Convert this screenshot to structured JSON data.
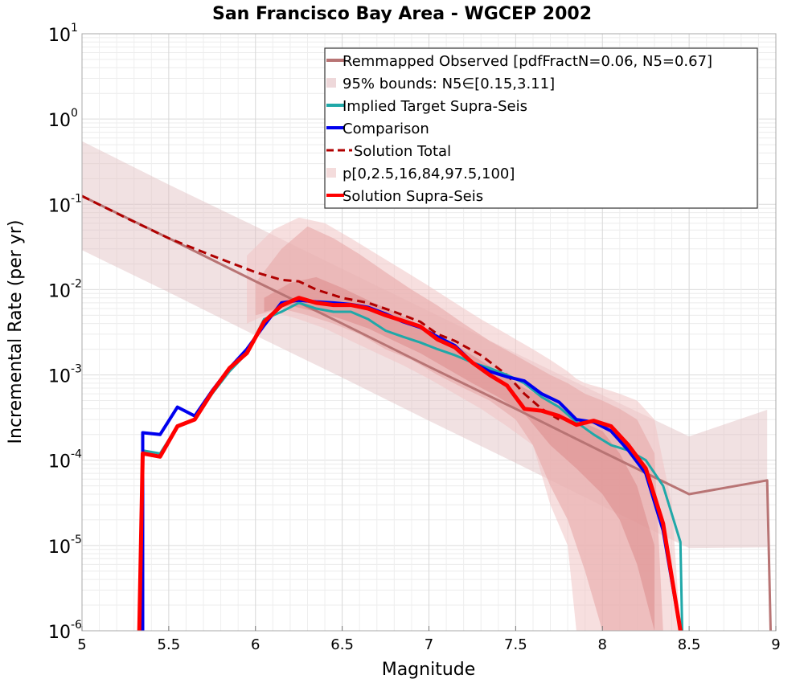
{
  "chart_data": {
    "type": "line",
    "title": "San Francisco Bay Area - WGCEP 2002",
    "xlabel": "Magnitude",
    "ylabel": "Incremental Rate (per yr)",
    "xlim": [
      5,
      9
    ],
    "ylim_log10": [
      -6,
      1
    ],
    "x_ticks": [
      {
        "value": 5,
        "label": "5"
      },
      {
        "value": 5.5,
        "label": "5.5"
      },
      {
        "value": 6,
        "label": "6"
      },
      {
        "value": 6.5,
        "label": "6.5"
      },
      {
        "value": 7,
        "label": "7"
      },
      {
        "value": 7.5,
        "label": "7.5"
      },
      {
        "value": 8,
        "label": "8"
      },
      {
        "value": 8.5,
        "label": "8.5"
      },
      {
        "value": 9,
        "label": "9"
      }
    ],
    "y_ticks": [
      {
        "exp": 1,
        "base": "10",
        "sup": "1"
      },
      {
        "exp": 0,
        "base": "10",
        "sup": "0"
      },
      {
        "exp": -1,
        "base": "10",
        "sup": "-1"
      },
      {
        "exp": -2,
        "base": "10",
        "sup": "-2"
      },
      {
        "exp": -3,
        "base": "10",
        "sup": "-3"
      },
      {
        "exp": -4,
        "base": "10",
        "sup": "-4"
      },
      {
        "exp": -5,
        "base": "10",
        "sup": "-5"
      },
      {
        "exp": -6,
        "base": "10",
        "sup": "-6"
      }
    ],
    "grid": true,
    "legend_position": "top-right",
    "legend": [
      {
        "label": "Remmapped Observed [pdfFractN=0.06, N5=0.67]",
        "kind": "line",
        "color": "#b87474"
      },
      {
        "label": "95% bounds: N5∈[0.15,3.11]",
        "kind": "band",
        "color": "#eed8da"
      },
      {
        "label": "Implied Target Supra-Seis",
        "kind": "line",
        "color": "#20a8a8"
      },
      {
        "label": "Comparison",
        "kind": "line",
        "color": "#0000ee"
      },
      {
        "label": "Solution Total",
        "kind": "dashed",
        "color": "#b00000"
      },
      {
        "label": "p[0,2.5,16,84,97.5,100]",
        "kind": "band",
        "color": "#f4dcdc"
      },
      {
        "label": "Solution Supra-Seis",
        "kind": "line",
        "color": "#ff0000"
      }
    ],
    "bands": [
      {
        "name": "95% bounds: N5∈[0.15,3.11]",
        "color": "#dfbcbf",
        "opacity": 0.45,
        "x": [
          5.0,
          5.5,
          6.0,
          6.5,
          7.0,
          7.5,
          8.0,
          8.5,
          8.95
        ],
        "upper": [
          0.55,
          0.17,
          0.055,
          0.0175,
          0.0056,
          0.0018,
          0.00058,
          0.00019,
          0.00039
        ],
        "lower": [
          0.029,
          0.0093,
          0.0029,
          0.00093,
          0.00029,
          9.3e-05,
          2.9e-05,
          9.3e-06,
          9.5e-06
        ]
      },
      {
        "name": "p[0,100]",
        "color": "#f0c4c4",
        "opacity": 0.55,
        "x": [
          5.95,
          6.1,
          6.25,
          6.4,
          6.55,
          6.7,
          6.85,
          7.0,
          7.15,
          7.3,
          7.45,
          7.6,
          7.7,
          7.8,
          7.85,
          7.9,
          8.0,
          8.1,
          8.2,
          8.3,
          8.4,
          8.45
        ],
        "upper": [
          0.025,
          0.05,
          0.07,
          0.06,
          0.04,
          0.026,
          0.017,
          0.011,
          0.007,
          0.0045,
          0.003,
          0.002,
          0.0015,
          0.0011,
          0.0009,
          0.0008,
          0.0007,
          0.0006,
          0.0005,
          0.0003,
          3e-05,
          1e-06
        ],
        "lower": [
          0.004,
          0.0055,
          0.0045,
          0.0035,
          0.0025,
          0.0018,
          0.0013,
          0.0009,
          0.0006,
          0.0004,
          0.00025,
          0.00015,
          3e-05,
          1e-05,
          1e-06,
          1e-06,
          1e-06,
          1e-06,
          1e-06,
          1e-06,
          1e-06,
          1e-06
        ]
      },
      {
        "name": "p[2.5,97.5]",
        "color": "#e8a8a8",
        "opacity": 0.6,
        "x": [
          6.0,
          6.15,
          6.3,
          6.45,
          6.6,
          6.75,
          6.9,
          7.05,
          7.2,
          7.35,
          7.5,
          7.6,
          7.7,
          7.8,
          7.9,
          8.0,
          8.1,
          8.2,
          8.3,
          8.35
        ],
        "upper": [
          0.012,
          0.03,
          0.055,
          0.04,
          0.026,
          0.016,
          0.01,
          0.0065,
          0.004,
          0.0025,
          0.0017,
          0.0013,
          0.001,
          0.0008,
          0.0006,
          0.0005,
          0.0004,
          0.0003,
          0.00012,
          1e-06
        ],
        "lower": [
          0.005,
          0.006,
          0.005,
          0.004,
          0.003,
          0.002,
          0.0015,
          0.001,
          0.0007,
          0.0005,
          0.0003,
          0.00015,
          5e-05,
          2e-05,
          5e-06,
          1e-06,
          1e-06,
          1e-06,
          1e-06,
          1e-06
        ]
      },
      {
        "name": "p[16,84]",
        "color": "#dc8a8a",
        "opacity": 0.55,
        "x": [
          6.05,
          6.2,
          6.35,
          6.5,
          6.65,
          6.8,
          6.95,
          7.1,
          7.25,
          7.4,
          7.55,
          7.7,
          7.85,
          8.0,
          8.1,
          8.2,
          8.3
        ],
        "upper": [
          0.008,
          0.012,
          0.014,
          0.0105,
          0.0075,
          0.0055,
          0.0038,
          0.0026,
          0.0017,
          0.0011,
          0.0007,
          0.0005,
          0.0003,
          0.00022,
          0.00012,
          5e-05,
          1e-05
        ],
        "lower": [
          0.0055,
          0.0065,
          0.0055,
          0.0045,
          0.0035,
          0.0025,
          0.0018,
          0.0012,
          0.0008,
          0.00055,
          0.00035,
          0.00015,
          8e-05,
          4e-05,
          2e-05,
          6e-06,
          1e-06
        ]
      }
    ],
    "series": [
      {
        "name": "Remmapped Observed [pdfFractN=0.06, N5=0.67]",
        "color": "#b87474",
        "width": 3,
        "dash": "",
        "x": [
          5.0,
          5.5,
          6.0,
          6.5,
          7.0,
          7.5,
          8.0,
          8.5,
          8.95,
          8.97
        ],
        "y": [
          0.125,
          0.04,
          0.0125,
          0.004,
          0.00125,
          0.0004,
          0.000125,
          4e-05,
          5.8e-05,
          1e-06
        ]
      },
      {
        "name": "Solution Total",
        "color": "#b00000",
        "width": 3,
        "dash": "10,6",
        "x": [
          5.0,
          5.25,
          5.5,
          5.75,
          6.0,
          6.15,
          6.25,
          6.35,
          6.5,
          6.65,
          6.8,
          6.95,
          7.05,
          7.15,
          7.3,
          7.45,
          7.55,
          7.65,
          7.75
        ],
        "y": [
          0.125,
          0.07,
          0.04,
          0.025,
          0.016,
          0.013,
          0.0125,
          0.01,
          0.008,
          0.007,
          0.0055,
          0.0042,
          0.003,
          0.0025,
          0.0017,
          0.001,
          0.0006,
          0.0004,
          0.0003
        ]
      },
      {
        "name": "Implied Target Supra-Seis",
        "color": "#20a8a8",
        "width": 3,
        "dash": "",
        "x": [
          5.35,
          5.35,
          5.45,
          5.55,
          5.65,
          5.75,
          5.85,
          5.95,
          6.05,
          6.15,
          6.25,
          6.35,
          6.45,
          6.55,
          6.65,
          6.75,
          6.85,
          6.95,
          7.05,
          7.15,
          7.25,
          7.35,
          7.45,
          7.55,
          7.65,
          7.75,
          7.85,
          7.95,
          8.05,
          8.15,
          8.25,
          8.35,
          8.45,
          8.46
        ],
        "y": [
          1e-06,
          0.00013,
          0.00012,
          0.00025,
          0.0003,
          0.0006,
          0.0011,
          0.0018,
          0.0045,
          0.0055,
          0.007,
          0.006,
          0.0055,
          0.0055,
          0.0045,
          0.0033,
          0.0028,
          0.0024,
          0.002,
          0.0017,
          0.0014,
          0.0012,
          0.001,
          0.0008,
          0.00055,
          0.00042,
          0.00028,
          0.0002,
          0.00015,
          0.00013,
          0.0001,
          5e-05,
          1.1e-05,
          1e-06
        ]
      },
      {
        "name": "Comparison",
        "color": "#0000ee",
        "width": 4,
        "dash": "",
        "x": [
          5.35,
          5.35,
          5.45,
          5.55,
          5.65,
          5.75,
          5.85,
          5.95,
          6.05,
          6.15,
          6.25,
          6.35,
          6.45,
          6.55,
          6.65,
          6.75,
          6.85,
          6.95,
          7.05,
          7.15,
          7.25,
          7.35,
          7.45,
          7.55,
          7.65,
          7.75,
          7.85,
          7.95,
          8.05,
          8.15,
          8.25,
          8.35,
          8.45
        ],
        "y": [
          1e-06,
          0.00021,
          0.0002,
          0.00042,
          0.00033,
          0.00065,
          0.0012,
          0.002,
          0.0038,
          0.007,
          0.0075,
          0.0072,
          0.007,
          0.0067,
          0.0062,
          0.0052,
          0.0042,
          0.0036,
          0.0028,
          0.0022,
          0.0014,
          0.0011,
          0.00095,
          0.00085,
          0.0006,
          0.00048,
          0.0003,
          0.00028,
          0.00022,
          0.00013,
          7e-05,
          1.5e-05,
          1e-06
        ]
      },
      {
        "name": "Solution Supra-Seis",
        "color": "#ff0000",
        "width": 5,
        "dash": "",
        "x": [
          5.33,
          5.35,
          5.45,
          5.55,
          5.65,
          5.75,
          5.85,
          5.95,
          6.05,
          6.15,
          6.25,
          6.35,
          6.45,
          6.55,
          6.65,
          6.75,
          6.85,
          6.95,
          7.05,
          7.15,
          7.25,
          7.35,
          7.45,
          7.55,
          7.65,
          7.75,
          7.85,
          7.95,
          8.05,
          8.15,
          8.25,
          8.35,
          8.45
        ],
        "y": [
          1e-06,
          0.00012,
          0.00011,
          0.00025,
          0.0003,
          0.00063,
          0.0012,
          0.0018,
          0.0042,
          0.0065,
          0.008,
          0.007,
          0.0066,
          0.0066,
          0.006,
          0.005,
          0.0043,
          0.0037,
          0.0026,
          0.0021,
          0.0014,
          0.001,
          0.00075,
          0.0004,
          0.00038,
          0.00033,
          0.00026,
          0.00029,
          0.00025,
          0.00015,
          8e-05,
          1.8e-05,
          1e-06
        ]
      }
    ]
  }
}
